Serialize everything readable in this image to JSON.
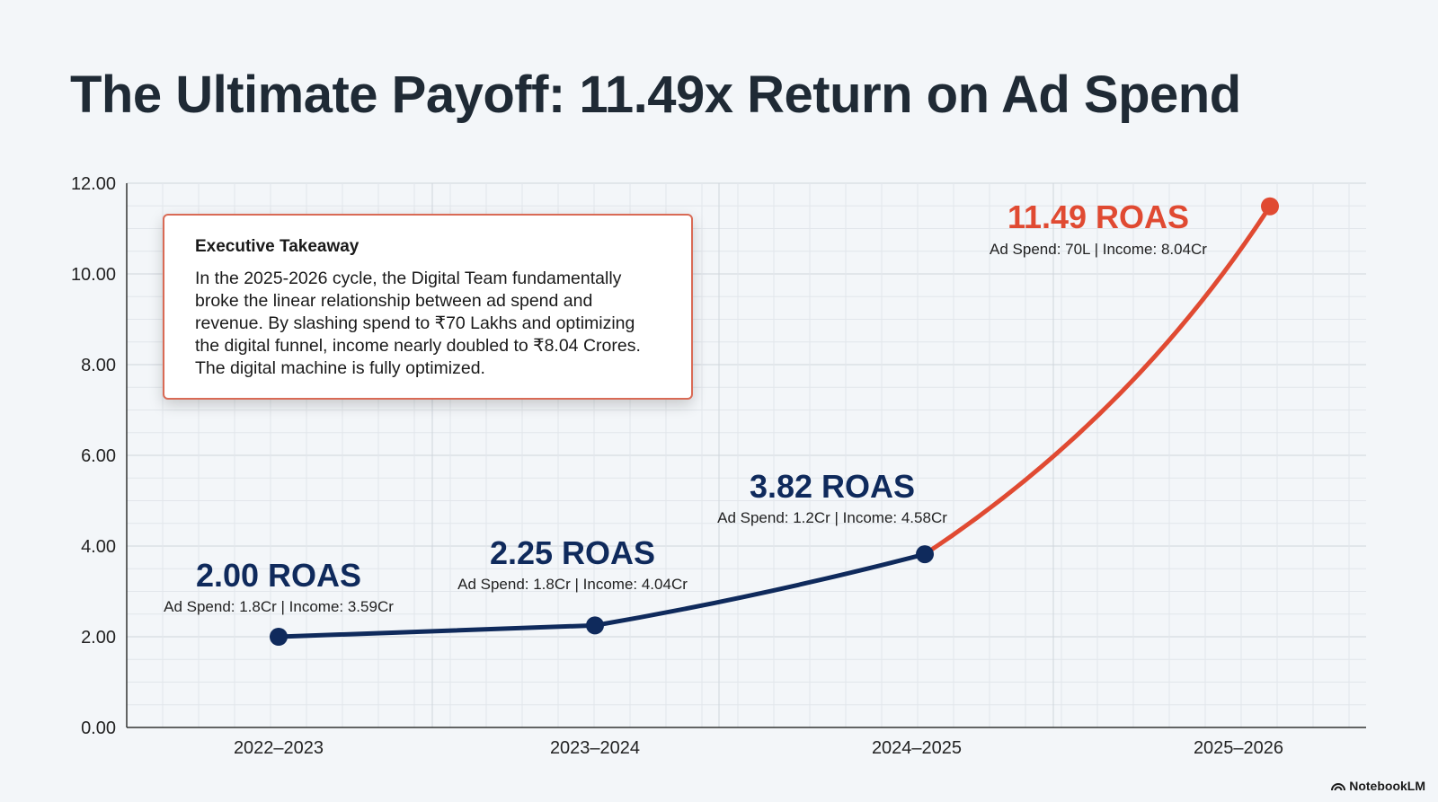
{
  "title": "The Ultimate Payoff: 11.49x Return on Ad Spend",
  "takeaway": {
    "heading": "Executive Takeaway",
    "body": "In the 2025-2026 cycle, the Digital Team fundamentally broke the linear relationship between ad spend and revenue. By slashing spend to ₹70 Lakhs and optimizing the digital funnel, income nearly doubled to ₹8.04 Crores. The digital machine is fully optimized."
  },
  "brand": "NotebookLM",
  "colors": {
    "dark": "#0f2a5c",
    "accent": "#e04a32",
    "grid": "#d8dde3",
    "axis": "#333333"
  },
  "chart_data": {
    "type": "line",
    "title": "",
    "xlabel": "",
    "ylabel": "",
    "categories": [
      "2022–2023",
      "2023–2024",
      "2024–2025",
      "2025–2026"
    ],
    "values": [
      2.0,
      2.25,
      3.82,
      11.49
    ],
    "ylim": [
      0,
      12
    ],
    "yticks": [
      "0.00",
      "2.00",
      "4.00",
      "6.00",
      "8.00",
      "10.00",
      "12.00"
    ],
    "grid": true,
    "labels": [
      {
        "roas": "2.00 ROAS",
        "detail": "Ad Spend: 1.8Cr | Income: 3.59Cr"
      },
      {
        "roas": "2.25 ROAS",
        "detail": "Ad Spend: 1.8Cr | Income: 4.04Cr"
      },
      {
        "roas": "3.82 ROAS",
        "detail": "Ad Spend: 1.2Cr | Income: 4.58Cr"
      },
      {
        "roas": "11.49 ROAS",
        "detail": "Ad Spend: 70L | Income: 8.04Cr"
      }
    ]
  }
}
